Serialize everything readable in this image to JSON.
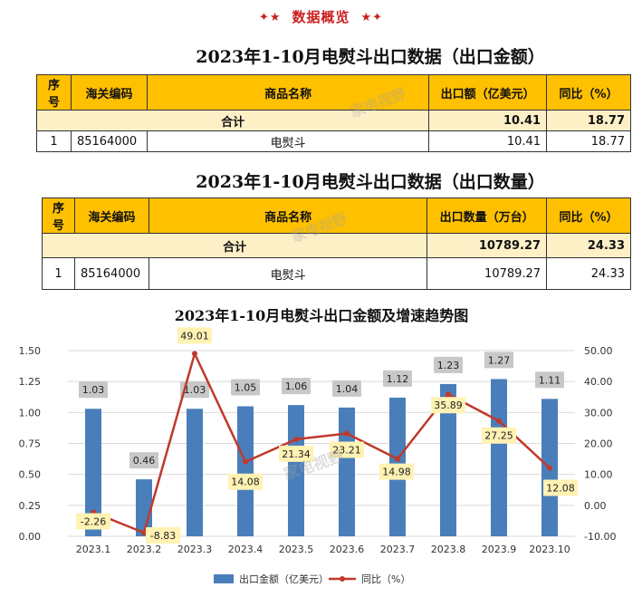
{
  "page": {
    "header": "数据概览",
    "watermark": "家电视野"
  },
  "table1": {
    "title": "2023年1-10月电熨斗出口数据（出口金额）",
    "headers": [
      "序号",
      "海关编码",
      "商品名称",
      "出口额（亿美元）",
      "同比（%）"
    ],
    "total_label": "合计",
    "total_value": "10.41",
    "total_yoy": "18.77",
    "rows": [
      {
        "no": "1",
        "code": "85164000",
        "name": "电熨斗",
        "value": "10.41",
        "yoy": "18.77"
      }
    ]
  },
  "table2": {
    "title": "2023年1-10月电熨斗出口数据（出口数量）",
    "headers": [
      "序号",
      "海关编码",
      "商品名称",
      "出口数量（万台）",
      "同比（%）"
    ],
    "total_label": "合计",
    "total_value": "10789.27",
    "total_yoy": "24.33",
    "rows": [
      {
        "no": "1",
        "code": "85164000",
        "name": "电熨斗",
        "value": "10789.27",
        "yoy": "24.33"
      }
    ]
  },
  "chart_data": {
    "type": "bar",
    "title": "2023年1-10月电熨斗出口金额及增速趋势图",
    "categories": [
      "2023.1",
      "2023.2",
      "2023.3",
      "2023.4",
      "2023.5",
      "2023.6",
      "2023.7",
      "2023.8",
      "2023.9",
      "2023.10"
    ],
    "series": [
      {
        "name": "出口金额（亿美元）",
        "type": "bar",
        "axis": "left",
        "color": "#4a7ebb",
        "values": [
          1.03,
          0.46,
          1.03,
          1.05,
          1.06,
          1.04,
          1.12,
          1.23,
          1.27,
          1.11
        ]
      },
      {
        "name": "同比（%）",
        "type": "line",
        "axis": "right",
        "color": "#c0392b",
        "values": [
          -2.26,
          -8.83,
          49.01,
          14.08,
          21.34,
          23.21,
          14.98,
          35.89,
          27.25,
          12.08
        ]
      }
    ],
    "y_left": {
      "min": 0,
      "max": 1.5,
      "ticks": [
        "0.00",
        "0.25",
        "0.50",
        "0.75",
        "1.00",
        "1.25",
        "1.50"
      ]
    },
    "y_right": {
      "min": -10,
      "max": 50,
      "ticks": [
        "-10.00",
        "0.00",
        "10.00",
        "20.00",
        "30.00",
        "40.00",
        "50.00"
      ]
    },
    "bar_labels": [
      "1.03",
      "0.46",
      "1.03",
      "1.05",
      "1.06",
      "1.04",
      "1.12",
      "1.23",
      "1.27",
      "1.11"
    ],
    "line_labels": [
      "-2.26",
      "-8.83",
      "49.01",
      "14.08",
      "21.34",
      "23.21",
      "14.98",
      "35.89",
      "27.25",
      "12.08"
    ],
    "legend_position": "bottom",
    "grid": true
  }
}
